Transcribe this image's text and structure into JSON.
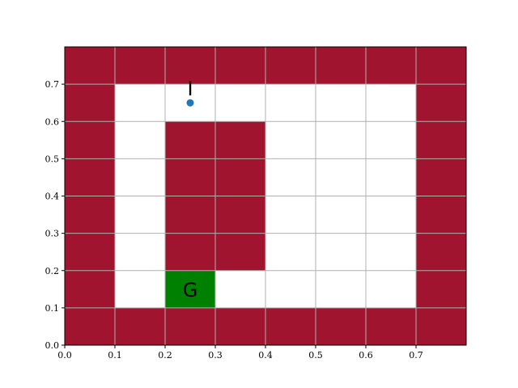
{
  "chart_data": {
    "type": "heatmap",
    "title": "",
    "xlabel": "",
    "ylabel": "",
    "xlim": [
      0.0,
      0.8
    ],
    "ylim": [
      0.0,
      0.8
    ],
    "x_ticks": [
      "0.0",
      "0.1",
      "0.2",
      "0.3",
      "0.4",
      "0.5",
      "0.6",
      "0.7"
    ],
    "y_ticks": [
      "0.0",
      "0.1",
      "0.2",
      "0.3",
      "0.4",
      "0.5",
      "0.6",
      "0.7"
    ],
    "x_tick_values": [
      0.0,
      0.1,
      0.2,
      0.3,
      0.4,
      0.5,
      0.6,
      0.7
    ],
    "y_tick_values": [
      0.0,
      0.1,
      0.2,
      0.3,
      0.4,
      0.5,
      0.6,
      0.7
    ],
    "grid": true,
    "cell_size": 0.1,
    "colors": {
      "wall": "#a01430",
      "free": "#ffffff",
      "goal": "#008000",
      "agent": "#1f77b4",
      "grid": "#b0b0b0"
    },
    "grid_rows_top_to_bottom": [
      [
        "wall",
        "wall",
        "wall",
        "wall",
        "wall",
        "wall",
        "wall",
        "wall"
      ],
      [
        "wall",
        "free",
        "free",
        "free",
        "free",
        "free",
        "free",
        "wall"
      ],
      [
        "wall",
        "free",
        "wall",
        "wall",
        "free",
        "free",
        "free",
        "wall"
      ],
      [
        "wall",
        "free",
        "wall",
        "wall",
        "free",
        "free",
        "free",
        "wall"
      ],
      [
        "wall",
        "free",
        "wall",
        "wall",
        "free",
        "free",
        "free",
        "wall"
      ],
      [
        "wall",
        "free",
        "wall",
        "wall",
        "free",
        "free",
        "free",
        "wall"
      ],
      [
        "wall",
        "free",
        "goal",
        "free",
        "free",
        "free",
        "free",
        "wall"
      ],
      [
        "wall",
        "wall",
        "wall",
        "wall",
        "wall",
        "wall",
        "wall",
        "wall"
      ]
    ],
    "agent": {
      "x": 0.25,
      "y": 0.65,
      "label": "I"
    },
    "goal": {
      "x": 0.25,
      "y": 0.15,
      "label": "G"
    }
  }
}
